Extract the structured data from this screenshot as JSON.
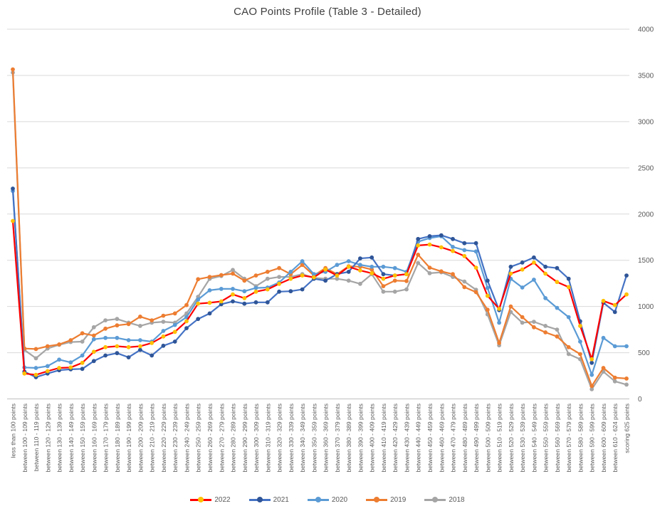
{
  "chart_data": {
    "type": "line",
    "title": "CAO Points Profile (Table 3 - Detailed)",
    "grid": true,
    "legend": {
      "position": "bottom",
      "entries": [
        "2022",
        "2021",
        "2020",
        "2019",
        "2018"
      ]
    },
    "y_axis": {
      "side": "right",
      "min": 0,
      "max": 4000,
      "step": 500,
      "tick_labels": [
        "0",
        "500",
        "1000",
        "1500",
        "2000",
        "2500",
        "3000",
        "3500",
        "4000"
      ]
    },
    "x_axis": {
      "label_rotation": -90
    },
    "categories": [
      "less than 100 points",
      "between 100 - 109 points",
      "between 110 - 119 points",
      "between 120 - 129 points",
      "between 130 - 139 points",
      "between 140 - 149 points",
      "between 150 - 159 points",
      "between 160 - 169 points",
      "between 170 - 179 points",
      "between 180 - 189 points",
      "between 190 - 199 points",
      "between 200 - 209 points",
      "between 210 - 219 points",
      "between 220 - 229 points",
      "between 230 - 239 points",
      "between 240 - 249 points",
      "between 250 - 259 points",
      "between 260 - 269 points",
      "between 270 - 279 points",
      "between 280 - 289 points",
      "between 290 - 299 points",
      "between 300 - 309 points",
      "between 310 - 319 points",
      "between 320 - 329 points",
      "between 330 - 339 points",
      "between 340 - 349 points",
      "between 350 - 359 points",
      "between 360 - 369 points",
      "between 370 - 379 points",
      "between 380 - 389 points",
      "between 390 - 399 points",
      "between 400 - 409 points",
      "between 410 - 419 points",
      "between 420 - 429 points",
      "between 430 - 439 points",
      "between 440 - 449 points",
      "between 450 - 459 points",
      "between 460 - 469 points",
      "between 470 - 479 points",
      "between 480 - 489 points",
      "between 490 - 499 points",
      "between 500 - 509 points",
      "between 510 - 519 points",
      "between 520 - 529 points",
      "between 530 - 539 points",
      "between 540 - 549 points",
      "between 550 - 559 points",
      "between 560 - 569 points",
      "between 570 - 579 points",
      "between 580 - 589 points",
      "between 590 - 599 points",
      "between 600 - 609 points",
      "between 610 - 624 points",
      "scoring 625 points"
    ],
    "series": [
      {
        "name": "2018",
        "line_color": "#A5A5A5",
        "marker_color": "#A5A5A5",
        "values": [
          3530,
          530,
          440,
          545,
          585,
          615,
          620,
          775,
          850,
          865,
          825,
          790,
          825,
          835,
          825,
          925,
          1105,
          1300,
          1330,
          1395,
          1300,
          1220,
          1300,
          1320,
          1320,
          1350,
          1310,
          1300,
          1300,
          1280,
          1245,
          1350,
          1160,
          1160,
          1185,
          1470,
          1360,
          1370,
          1320,
          1270,
          1180,
          915,
          580,
          940,
          825,
          835,
          790,
          750,
          485,
          430,
          105,
          295,
          190,
          155
        ]
      },
      {
        "name": "2019",
        "line_color": "#ED7D31",
        "marker_color": "#ED7D31",
        "values": [
          3565,
          545,
          540,
          570,
          590,
          635,
          710,
          685,
          760,
          795,
          810,
          890,
          850,
          900,
          925,
          1015,
          1295,
          1320,
          1340,
          1355,
          1280,
          1335,
          1375,
          1415,
          1350,
          1450,
          1335,
          1415,
          1350,
          1435,
          1430,
          1400,
          1220,
          1280,
          1275,
          1560,
          1420,
          1380,
          1350,
          1210,
          1155,
          965,
          605,
          1000,
          885,
          775,
          720,
          675,
          560,
          485,
          140,
          335,
          230,
          220
        ]
      },
      {
        "name": "2020",
        "line_color": "#5B9BD5",
        "marker_color": "#5B9BD5",
        "values": [
          2250,
          340,
          335,
          355,
          425,
          395,
          470,
          645,
          660,
          660,
          635,
          635,
          620,
          735,
          800,
          885,
          1075,
          1175,
          1190,
          1190,
          1165,
          1200,
          1205,
          1260,
          1375,
          1490,
          1350,
          1375,
          1450,
          1490,
          1450,
          1430,
          1430,
          1415,
          1375,
          1700,
          1740,
          1760,
          1645,
          1610,
          1595,
          1200,
          825,
          1300,
          1205,
          1290,
          1090,
          985,
          885,
          620,
          260,
          660,
          570,
          570
        ]
      },
      {
        "name": "2021",
        "line_color": "#4472C4",
        "marker_color": "#2F5597",
        "values": [
          2275,
          295,
          235,
          275,
          310,
          320,
          325,
          410,
          470,
          495,
          450,
          530,
          470,
          575,
          620,
          765,
          865,
          925,
          1025,
          1055,
          1030,
          1045,
          1045,
          1160,
          1165,
          1185,
          1300,
          1280,
          1350,
          1375,
          1520,
          1530,
          1350,
          1335,
          1350,
          1730,
          1760,
          1770,
          1730,
          1685,
          1685,
          1280,
          960,
          1430,
          1475,
          1530,
          1430,
          1415,
          1300,
          840,
          390,
          1040,
          940,
          1335
        ]
      },
      {
        "name": "2022",
        "line_color": "#FF0000",
        "marker_color": "#FFC000",
        "values": [
          1925,
          275,
          260,
          300,
          335,
          340,
          390,
          510,
          560,
          570,
          560,
          570,
          605,
          675,
          725,
          840,
          1030,
          1040,
          1055,
          1130,
          1090,
          1160,
          1185,
          1245,
          1300,
          1335,
          1315,
          1400,
          1335,
          1430,
          1390,
          1360,
          1300,
          1335,
          1350,
          1660,
          1670,
          1640,
          1600,
          1545,
          1420,
          1115,
          975,
          1355,
          1400,
          1475,
          1355,
          1265,
          1210,
          790,
          430,
          1060,
          1015,
          1130
        ]
      }
    ],
    "style": {
      "grid_color": "#D9D9D9",
      "axis_color": "#BFBFBF",
      "tick_label_color": "#595959",
      "title_color": "#404040"
    }
  }
}
